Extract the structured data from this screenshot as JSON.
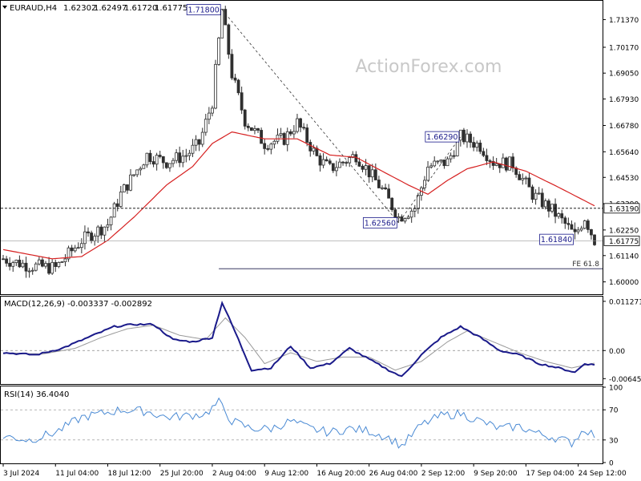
{
  "symbol_header": {
    "symbol": "EURAUD,H4",
    "open": "1.62302",
    "high": "1.62497",
    "low": "1.61720",
    "close": "1.61775"
  },
  "watermark": "ActionForex.com",
  "price_panel": {
    "y_ticks": [
      "1.71370",
      "1.70170",
      "1.69050",
      "1.67930",
      "1.66780",
      "1.65640",
      "1.64530",
      "1.63390",
      "1.62250",
      "1.61140",
      "1.60000"
    ],
    "y_tick_values": [
      1.7137,
      1.7017,
      1.6905,
      1.6793,
      1.6678,
      1.6564,
      1.6453,
      1.6339,
      1.6225,
      1.6114,
      1.6
    ],
    "ylim": [
      1.595,
      1.7215
    ],
    "hline_value": 1.6319,
    "hline_label": "1.63190",
    "last_price_label": "1.61775",
    "last_price_value": 1.61775,
    "fe_label": "FE 61.8",
    "fe_value": 1.6057,
    "annotations": [
      {
        "label": "1.71800",
        "value": 1.718,
        "bar": 67
      },
      {
        "label": "1.62560",
        "value": 1.6256,
        "bar": 121
      },
      {
        "label": "1.66290",
        "value": 1.6629,
        "bar": 140
      },
      {
        "label": "1.61840",
        "value": 1.6184,
        "bar": 175
      }
    ]
  },
  "macd_panel": {
    "label": "MACD(12,26,9) -0.003337 -0.002892",
    "y_ticks": [
      "0.011271",
      "0.00",
      "-0.006453"
    ],
    "ylim": [
      -0.0075,
      0.0122
    ]
  },
  "rsi_panel": {
    "label": "RSI(14) 36.4040",
    "y_ticks": [
      "100",
      "70",
      "30",
      "0"
    ],
    "ylim": [
      0,
      100
    ]
  },
  "x_ticks": [
    "3 Jul 2024",
    "11 Jul 04:00",
    "18 Jul 12:00",
    "25 Jul 20:00",
    "2 Aug 04:00",
    "9 Aug 12:00",
    "16 Aug 20:00",
    "26 Aug 04:00",
    "2 Sep 12:00",
    "9 Sep 20:00",
    "17 Sep 04:00",
    "24 Sep 12:00"
  ],
  "x_tick_bars": [
    0,
    16,
    32,
    48,
    64,
    80,
    96,
    112,
    128,
    144,
    160,
    176
  ],
  "colors": {
    "bull": "#2f2f2f",
    "bear": "#2f2f2f",
    "ma": "#d62020",
    "macd": "#1a1a8a",
    "signal": "#999999",
    "rsi": "#4a8ad4",
    "label_box": "#1a1a8a"
  },
  "chart_data": {
    "type": "candlestick",
    "bars": 182,
    "price_keypoints": [
      [
        0,
        1.61
      ],
      [
        8,
        1.607
      ],
      [
        16,
        1.606
      ],
      [
        24,
        1.618
      ],
      [
        32,
        1.625
      ],
      [
        36,
        1.638
      ],
      [
        44,
        1.655
      ],
      [
        50,
        1.652
      ],
      [
        56,
        1.655
      ],
      [
        60,
        1.66
      ],
      [
        64,
        1.678
      ],
      [
        67,
        1.718
      ],
      [
        70,
        1.69
      ],
      [
        74,
        1.67
      ],
      [
        80,
        1.66
      ],
      [
        86,
        1.662
      ],
      [
        90,
        1.669
      ],
      [
        96,
        1.654
      ],
      [
        100,
        1.649
      ],
      [
        108,
        1.655
      ],
      [
        116,
        1.64
      ],
      [
        121,
        1.628
      ],
      [
        126,
        1.632
      ],
      [
        130,
        1.65
      ],
      [
        136,
        1.652
      ],
      [
        140,
        1.663
      ],
      [
        146,
        1.659
      ],
      [
        150,
        1.652
      ],
      [
        156,
        1.651
      ],
      [
        162,
        1.638
      ],
      [
        168,
        1.631
      ],
      [
        172,
        1.625
      ],
      [
        175,
        1.62
      ],
      [
        178,
        1.628
      ],
      [
        181,
        1.618
      ]
    ],
    "ma_keypoints": [
      [
        0,
        1.614
      ],
      [
        15,
        1.61
      ],
      [
        24,
        1.611
      ],
      [
        32,
        1.618
      ],
      [
        40,
        1.628
      ],
      [
        50,
        1.642
      ],
      [
        58,
        1.65
      ],
      [
        64,
        1.66
      ],
      [
        70,
        1.665
      ],
      [
        80,
        1.662
      ],
      [
        90,
        1.662
      ],
      [
        100,
        1.655
      ],
      [
        108,
        1.654
      ],
      [
        116,
        1.648
      ],
      [
        124,
        1.642
      ],
      [
        130,
        1.638
      ],
      [
        136,
        1.644
      ],
      [
        142,
        1.649
      ],
      [
        150,
        1.652
      ],
      [
        160,
        1.648
      ],
      [
        170,
        1.641
      ],
      [
        181,
        1.633
      ]
    ],
    "macd_keypoints": [
      [
        0,
        -0.0005
      ],
      [
        10,
        -0.001
      ],
      [
        18,
        0.0005
      ],
      [
        26,
        0.003
      ],
      [
        34,
        0.0055
      ],
      [
        40,
        0.006
      ],
      [
        46,
        0.006
      ],
      [
        52,
        0.0025
      ],
      [
        58,
        0.002
      ],
      [
        64,
        0.003
      ],
      [
        67,
        0.011
      ],
      [
        70,
        0.006
      ],
      [
        76,
        -0.0045
      ],
      [
        82,
        -0.004
      ],
      [
        88,
        0.001
      ],
      [
        94,
        -0.004
      ],
      [
        100,
        -0.003
      ],
      [
        106,
        0.0005
      ],
      [
        112,
        -0.002
      ],
      [
        118,
        -0.0045
      ],
      [
        122,
        -0.006
      ],
      [
        128,
        -0.001
      ],
      [
        134,
        0.003
      ],
      [
        140,
        0.0055
      ],
      [
        146,
        0.003
      ],
      [
        152,
        0.0
      ],
      [
        158,
        -0.001
      ],
      [
        164,
        -0.003
      ],
      [
        170,
        -0.004
      ],
      [
        175,
        -0.005
      ],
      [
        178,
        -0.003
      ],
      [
        181,
        -0.0033
      ]
    ],
    "signal_keypoints": [
      [
        0,
        -0.0005
      ],
      [
        12,
        -0.0008
      ],
      [
        22,
        0.0005
      ],
      [
        30,
        0.003
      ],
      [
        38,
        0.005
      ],
      [
        46,
        0.0058
      ],
      [
        54,
        0.0035
      ],
      [
        62,
        0.0025
      ],
      [
        68,
        0.0075
      ],
      [
        74,
        0.003
      ],
      [
        80,
        -0.003
      ],
      [
        88,
        -0.0005
      ],
      [
        96,
        -0.0025
      ],
      [
        104,
        -0.0015
      ],
      [
        112,
        -0.0015
      ],
      [
        120,
        -0.0045
      ],
      [
        128,
        -0.0025
      ],
      [
        136,
        0.002
      ],
      [
        142,
        0.0045
      ],
      [
        150,
        0.002
      ],
      [
        158,
        -0.0005
      ],
      [
        166,
        -0.0025
      ],
      [
        174,
        -0.004
      ],
      [
        181,
        -0.0029
      ]
    ],
    "rsi_keypoints": [
      [
        0,
        35
      ],
      [
        8,
        30
      ],
      [
        16,
        40
      ],
      [
        24,
        60
      ],
      [
        30,
        65
      ],
      [
        36,
        70
      ],
      [
        44,
        68
      ],
      [
        50,
        60
      ],
      [
        56,
        62
      ],
      [
        62,
        65
      ],
      [
        66,
        80
      ],
      [
        70,
        55
      ],
      [
        76,
        45
      ],
      [
        82,
        45
      ],
      [
        88,
        55
      ],
      [
        94,
        45
      ],
      [
        100,
        40
      ],
      [
        106,
        45
      ],
      [
        112,
        42
      ],
      [
        118,
        33
      ],
      [
        122,
        22
      ],
      [
        128,
        50
      ],
      [
        134,
        62
      ],
      [
        140,
        65
      ],
      [
        146,
        55
      ],
      [
        152,
        45
      ],
      [
        158,
        48
      ],
      [
        164,
        38
      ],
      [
        170,
        32
      ],
      [
        174,
        26
      ],
      [
        178,
        45
      ],
      [
        181,
        36
      ]
    ]
  }
}
